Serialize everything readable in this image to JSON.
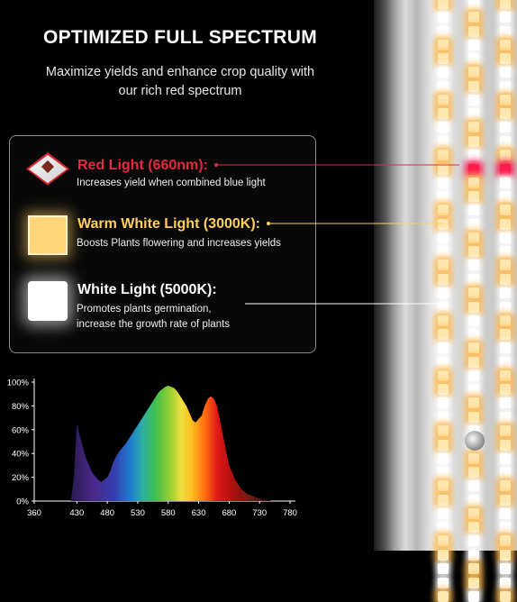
{
  "header": {
    "title": "OPTIMIZED FULL SPECTRUM",
    "subtitle_line1": "Maximize yields and enhance crop quality with",
    "subtitle_line2": "our rich red spectrum"
  },
  "legend_items": [
    {
      "title": "Red Light (660nm):",
      "desc_line1": "Increases yield when combined blue light",
      "desc_line2": "",
      "color": "#e8283c",
      "icon": "red-led-chip-icon"
    },
    {
      "title": "Warm White Light (3000K):",
      "desc_line1": "Boosts Plants flowering and increases yields",
      "desc_line2": "",
      "color": "#ffd05a",
      "icon": "warm-white-led-chip-icon"
    },
    {
      "title": "White Light (5000K):",
      "desc_line1": "Promotes plants germination,",
      "desc_line2": "increase the growth rate of plants",
      "color": "#ffffff",
      "icon": "white-led-chip-icon"
    }
  ],
  "chart_data": {
    "type": "area",
    "xlabel": "",
    "ylabel": "",
    "x_ticks": [
      "360",
      "430",
      "480",
      "530",
      "580",
      "630",
      "680",
      "730",
      "780"
    ],
    "y_ticks": [
      "0%",
      "20%",
      "40%",
      "60%",
      "80%",
      "100%"
    ],
    "xlim": [
      360,
      780
    ],
    "ylim": [
      0,
      100
    ],
    "x": [
      420,
      425,
      430,
      435,
      440,
      445,
      450,
      455,
      460,
      465,
      470,
      475,
      480,
      485,
      490,
      495,
      500,
      505,
      510,
      515,
      520,
      525,
      530,
      535,
      540,
      545,
      550,
      555,
      560,
      565,
      570,
      575,
      580,
      585,
      590,
      595,
      600,
      605,
      610,
      615,
      620,
      625,
      630,
      635,
      640,
      645,
      650,
      655,
      660,
      665,
      670,
      675,
      680,
      690,
      700,
      710,
      720,
      730,
      740,
      750
    ],
    "y": [
      0,
      20,
      65,
      55,
      45,
      36,
      30,
      24,
      21,
      18,
      16,
      18,
      20,
      25,
      33,
      38,
      42,
      45,
      48,
      52,
      56,
      60,
      64,
      68,
      72,
      76,
      80,
      84,
      88,
      92,
      94,
      96,
      97,
      96,
      95,
      92,
      88,
      84,
      80,
      74,
      68,
      66,
      69,
      72,
      80,
      86,
      88,
      86,
      80,
      68,
      55,
      42,
      30,
      18,
      10,
      6,
      4,
      2,
      1,
      0
    ]
  },
  "colors": {
    "red": "#e8283c",
    "warm": "#ffd05a",
    "white": "#ffffff",
    "background": "#000000"
  }
}
